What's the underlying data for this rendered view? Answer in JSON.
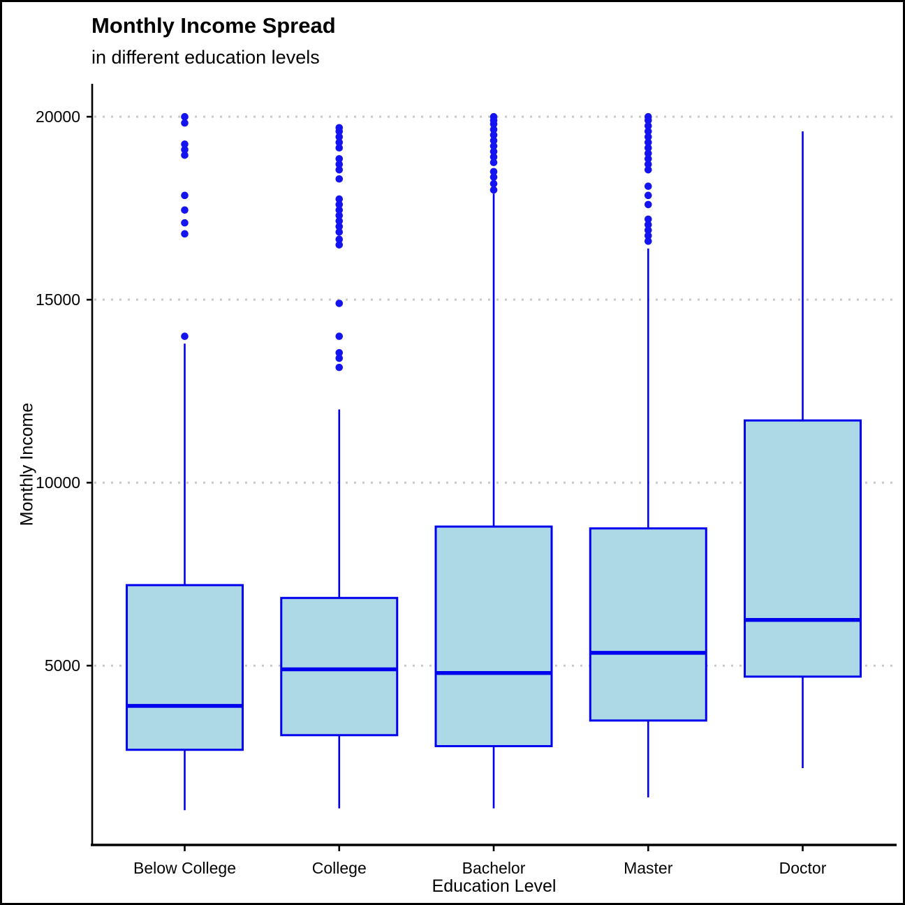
{
  "title": "Monthly Income Spread",
  "subtitle": "in different education levels",
  "chart_data": {
    "type": "boxplot",
    "title": "Monthly Income Spread",
    "subtitle": "in different education levels",
    "xlabel": "Education Level",
    "ylabel": "Monthly Income",
    "categories": [
      "Below College",
      "College",
      "Bachelor",
      "Master",
      "Doctor"
    ],
    "yticks": [
      5000,
      10000,
      15000,
      20000
    ],
    "ylim": [
      100,
      20900
    ],
    "grid": "horizontal-dotted",
    "legend": "none",
    "colors": {
      "box_fill": "#ADD8E6",
      "box_stroke": "#0000EE",
      "median": "#0000EE",
      "whisker": "#0000EE",
      "outlier": "#1414F0",
      "gridline": "#C9C9C9",
      "axis": "#000000"
    },
    "boxes": [
      {
        "category": "Below College",
        "whisker_low": 1050,
        "q1": 2700,
        "median": 3900,
        "q3": 7200,
        "whisker_high": 13800,
        "outliers": [
          14000,
          16800,
          17100,
          17450,
          17850,
          18950,
          19100,
          19250,
          19830,
          19999
        ]
      },
      {
        "category": "College",
        "whisker_low": 1100,
        "q1": 3100,
        "median": 4900,
        "q3": 6850,
        "whisker_high": 12000,
        "outliers": [
          13150,
          13400,
          13550,
          14000,
          14900,
          16500,
          16650,
          16850,
          17000,
          17150,
          17300,
          17450,
          17600,
          17750,
          18300,
          18550,
          18700,
          18850,
          19150,
          19300,
          19450,
          19600,
          19700
        ]
      },
      {
        "category": "Bachelor",
        "whisker_low": 1100,
        "q1": 2800,
        "median": 4800,
        "q3": 8800,
        "whisker_high": 17900,
        "outliers": [
          18000,
          18170,
          18350,
          18500,
          18750,
          18900,
          19050,
          19200,
          19350,
          19500,
          19650,
          19800,
          19900,
          19999
        ]
      },
      {
        "category": "Master",
        "whisker_low": 1400,
        "q1": 3500,
        "median": 5350,
        "q3": 8750,
        "whisker_high": 16400,
        "outliers": [
          16600,
          16750,
          16900,
          17050,
          17200,
          17600,
          17850,
          18100,
          18550,
          18700,
          18850,
          19000,
          19150,
          19300,
          19450,
          19600,
          19750,
          19900,
          19999
        ]
      },
      {
        "category": "Doctor",
        "whisker_low": 2200,
        "q1": 4700,
        "median": 6250,
        "q3": 11700,
        "whisker_high": 19600,
        "outliers": []
      }
    ]
  }
}
